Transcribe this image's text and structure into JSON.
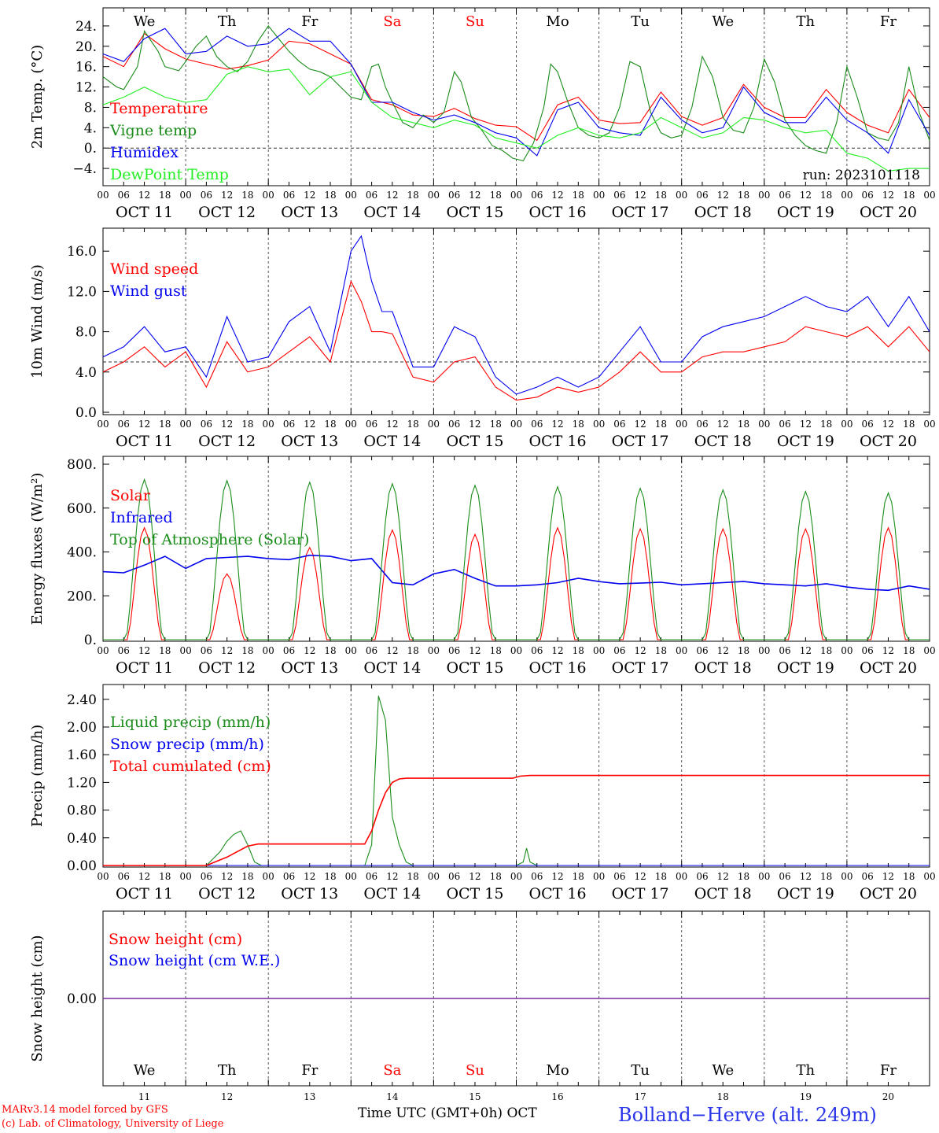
{
  "chart_data": [
    {
      "type": "line",
      "ylabel": "2m Temp. (°C)",
      "ylim": [
        -6,
        26
      ],
      "yticks": [
        {
          "v": 24,
          "label": "24."
        },
        {
          "v": 20,
          "label": "20."
        },
        {
          "v": 16,
          "label": "16."
        },
        {
          "v": 12,
          "label": "12."
        },
        {
          "v": 8,
          "label": "8."
        },
        {
          "v": 4,
          "label": "4."
        },
        {
          "v": 0,
          "label": "0."
        },
        {
          "v": -4,
          "label": "-4."
        }
      ],
      "ref_line": 0,
      "annotation": "run: 2023101118",
      "series": [
        {
          "name": "Temperature",
          "color": "#ff0000",
          "x": [
            0,
            6,
            12,
            18,
            24,
            30,
            36,
            42,
            48,
            54,
            60,
            66,
            72,
            78,
            84,
            90,
            96,
            102,
            108,
            114,
            120,
            126,
            132,
            138,
            144,
            150,
            156,
            162,
            168,
            174,
            180,
            186,
            192,
            198,
            204,
            210,
            216,
            222,
            228,
            234,
            240
          ],
          "y": [
            18,
            16,
            22.5,
            19.5,
            17.5,
            16.5,
            15.5,
            16.2,
            17.3,
            21,
            20.5,
            18.5,
            16.5,
            9.5,
            8.5,
            6.5,
            6.2,
            7.8,
            5.8,
            4.5,
            4.2,
            1.5,
            8.5,
            10,
            5.5,
            4.8,
            5,
            11,
            6.2,
            4.5,
            6,
            12.5,
            8,
            6,
            6,
            11.5,
            7,
            4.5,
            3,
            11.5,
            6
          ]
        },
        {
          "name": "Vigne temp",
          "color": "#1a8c1a",
          "x": [
            0,
            4,
            6,
            10,
            12,
            16,
            18,
            22,
            24,
            27,
            30,
            33,
            36,
            39,
            42,
            45,
            48,
            51,
            54,
            57,
            60,
            63,
            66,
            69,
            72,
            75,
            78,
            80,
            82,
            84,
            87,
            90,
            93,
            96,
            99,
            102,
            104,
            107,
            110,
            113,
            116,
            119,
            122,
            125,
            128,
            130,
            132,
            135,
            138,
            141,
            144,
            147,
            150,
            153,
            156,
            159,
            162,
            165,
            168,
            171,
            174,
            177,
            180,
            183,
            186,
            189,
            192,
            195,
            198,
            201,
            204,
            207,
            210,
            213,
            216,
            219,
            222,
            225,
            228,
            231,
            234,
            237,
            240
          ],
          "y": [
            14,
            12,
            11.5,
            16,
            23,
            19,
            16,
            15.2,
            17,
            20,
            22,
            18,
            16,
            15,
            17,
            21,
            24,
            21.5,
            19,
            17,
            15.5,
            15,
            14,
            12,
            10,
            9.5,
            16,
            16.5,
            12,
            9,
            5,
            4,
            6.5,
            5,
            7,
            15,
            13,
            6,
            3.5,
            0.5,
            -0.5,
            -2,
            -2.5,
            1,
            8,
            16.5,
            15,
            9,
            4,
            2.5,
            2,
            3,
            8,
            17,
            16,
            7,
            3,
            2,
            2.5,
            8,
            18,
            14,
            6,
            3.5,
            3,
            8,
            17.5,
            13,
            5.5,
            2.5,
            0.5,
            -0.5,
            -1,
            5,
            16,
            10,
            3,
            2,
            1.5,
            5,
            16,
            7,
            1.5
          ]
        },
        {
          "name": "Humidex",
          "color": "#0000ee",
          "x": [
            0,
            6,
            12,
            18,
            24,
            30,
            36,
            42,
            48,
            54,
            60,
            66,
            72,
            78,
            84,
            90,
            96,
            102,
            108,
            114,
            120,
            126,
            132,
            138,
            144,
            150,
            156,
            162,
            168,
            174,
            180,
            186,
            192,
            198,
            204,
            210,
            216,
            222,
            228,
            234,
            240
          ],
          "y": [
            18.5,
            17,
            21.5,
            23.5,
            18.5,
            19,
            22,
            20,
            20.5,
            23.5,
            21,
            21,
            16.5,
            9,
            9,
            7,
            5.5,
            6.5,
            5,
            3,
            2,
            -1.5,
            7.5,
            9,
            4,
            3,
            2.5,
            10,
            5.5,
            3,
            4,
            12,
            7,
            5,
            5,
            10,
            5.5,
            3,
            -1,
            9.5,
            2.5
          ]
        },
        {
          "name": "DewPoint Temp",
          "color": "#22ee22",
          "x": [
            0,
            6,
            12,
            18,
            24,
            30,
            36,
            42,
            48,
            54,
            60,
            66,
            72,
            78,
            84,
            90,
            96,
            102,
            108,
            114,
            120,
            126,
            132,
            138,
            144,
            150,
            156,
            162,
            168,
            174,
            180,
            186,
            192,
            198,
            204,
            210,
            216,
            222,
            228,
            234,
            240
          ],
          "y": [
            8.5,
            10,
            12,
            10,
            9,
            9.5,
            14.5,
            16,
            15,
            15.5,
            10.5,
            14,
            15,
            9,
            6,
            5,
            4,
            5.5,
            4.5,
            2,
            1,
            0,
            2.5,
            4,
            2.5,
            2,
            3,
            6,
            4,
            2,
            3,
            6,
            5.5,
            4,
            3,
            3.5,
            -1,
            -2,
            -4.5,
            -4,
            -4
          ]
        }
      ]
    },
    {
      "type": "line",
      "ylabel": "10m Wind (m/s)",
      "ylim": [
        0,
        17.5
      ],
      "yticks": [
        {
          "v": 16,
          "label": "16.0"
        },
        {
          "v": 12,
          "label": "12.0"
        },
        {
          "v": 8,
          "label": "8.0"
        },
        {
          "v": 4,
          "label": "4.0"
        },
        {
          "v": 0,
          "label": "0.0"
        }
      ],
      "ref_line": 5,
      "series": [
        {
          "name": "Wind speed",
          "color": "#ff0000",
          "x": [
            0,
            6,
            12,
            18,
            24,
            30,
            36,
            42,
            48,
            54,
            60,
            66,
            72,
            75,
            78,
            81,
            84,
            90,
            96,
            102,
            108,
            114,
            120,
            126,
            132,
            138,
            144,
            150,
            156,
            162,
            168,
            174,
            180,
            186,
            192,
            198,
            204,
            210,
            216,
            222,
            228,
            234,
            240
          ],
          "y": [
            4,
            5,
            6.5,
            4.5,
            6,
            2.5,
            7,
            4,
            4.5,
            6,
            7.5,
            5,
            13,
            11,
            8,
            8,
            7.8,
            3.5,
            3,
            5,
            5.5,
            2.5,
            1.2,
            1.5,
            2.5,
            2,
            2.5,
            4,
            6,
            4,
            4,
            5.5,
            6,
            6,
            6.5,
            7,
            8.5,
            8,
            7.5,
            8.5,
            6.5,
            8.5,
            6
          ]
        },
        {
          "name": "Wind gust",
          "color": "#0000ee",
          "x": [
            0,
            6,
            12,
            18,
            24,
            30,
            36,
            42,
            48,
            54,
            60,
            66,
            72,
            75,
            78,
            81,
            84,
            90,
            96,
            102,
            108,
            114,
            120,
            126,
            132,
            138,
            144,
            150,
            156,
            162,
            168,
            174,
            180,
            186,
            192,
            198,
            204,
            210,
            216,
            222,
            228,
            234,
            240
          ],
          "y": [
            5.5,
            6.5,
            8.5,
            6,
            6.5,
            3.5,
            9.5,
            5,
            5.5,
            9,
            10.5,
            6,
            16,
            17.5,
            13,
            10,
            10,
            4.5,
            4.5,
            8.5,
            7.5,
            3.5,
            1.8,
            2.5,
            3.5,
            2.5,
            3.5,
            6,
            8.5,
            5,
            5,
            7.5,
            8.5,
            9,
            9.5,
            10.5,
            11.5,
            10.5,
            10,
            11.5,
            8.5,
            11.5,
            8
          ]
        }
      ]
    },
    {
      "type": "line",
      "ylabel": "Energy fluxes (W/m²)",
      "ylim": [
        0,
        800
      ],
      "yticks": [
        {
          "v": 800,
          "label": "800."
        },
        {
          "v": 600,
          "label": "600."
        },
        {
          "v": 400,
          "label": "400."
        },
        {
          "v": 200,
          "label": "200."
        },
        {
          "v": 0,
          "label": "0."
        }
      ],
      "series": [
        {
          "name": "Solar",
          "color": "#ff0000",
          "peaks": [
            510,
            300,
            420,
            500,
            480,
            510,
            505,
            505,
            505,
            510
          ]
        },
        {
          "name": "Infrared",
          "color": "#0000ee",
          "x": [
            0,
            6,
            12,
            18,
            24,
            30,
            36,
            42,
            48,
            54,
            60,
            66,
            72,
            78,
            84,
            90,
            96,
            102,
            108,
            114,
            120,
            126,
            132,
            138,
            144,
            150,
            156,
            162,
            168,
            174,
            180,
            186,
            192,
            198,
            204,
            210,
            216,
            222,
            228,
            234,
            240
          ],
          "y": [
            310,
            305,
            340,
            380,
            325,
            370,
            375,
            380,
            370,
            365,
            385,
            380,
            360,
            370,
            260,
            250,
            300,
            320,
            280,
            245,
            245,
            250,
            260,
            280,
            265,
            255,
            258,
            262,
            250,
            255,
            260,
            265,
            255,
            250,
            245,
            255,
            240,
            230,
            225,
            245,
            230
          ]
        },
        {
          "name": "Top of Atmosphere (Solar)",
          "color": "#1a8c1a",
          "peaks": [
            730,
            725,
            718,
            711,
            704,
            697,
            690,
            683,
            676,
            669
          ]
        }
      ]
    },
    {
      "type": "line",
      "ylabel": "Precip (mm/h)",
      "ylim": [
        0,
        2.5
      ],
      "yticks": [
        {
          "v": 2.4,
          "label": "2.40"
        },
        {
          "v": 2.0,
          "label": "2.00"
        },
        {
          "v": 1.6,
          "label": "1.60"
        },
        {
          "v": 1.2,
          "label": "1.20"
        },
        {
          "v": 0.8,
          "label": "0.80"
        },
        {
          "v": 0.4,
          "label": "0.40"
        },
        {
          "v": 0,
          "label": "0.00"
        }
      ],
      "series": [
        {
          "name": "Liquid precip (mm/h)",
          "color": "#1a8c1a",
          "x": [
            0,
            30,
            32,
            34,
            36,
            38,
            40,
            42,
            44,
            46,
            48,
            76,
            78,
            80,
            82,
            84,
            86,
            88,
            90,
            92,
            120,
            122,
            123,
            124,
            126,
            240
          ],
          "y": [
            0,
            0,
            0.1,
            0.2,
            0.35,
            0.45,
            0.5,
            0.3,
            0.05,
            0,
            0,
            0,
            0.3,
            2.45,
            2.1,
            0.7,
            0.3,
            0.05,
            0,
            0,
            0,
            0.05,
            0.25,
            0.05,
            0,
            0
          ]
        },
        {
          "name": "Snow precip (mm/h)",
          "color": "#0000ee",
          "x": [
            0,
            240
          ],
          "y": [
            0,
            0
          ]
        },
        {
          "name": "Total cumulated (cm)",
          "color": "#ff0000",
          "x": [
            0,
            30,
            36,
            42,
            45,
            48,
            76,
            78,
            80,
            82,
            84,
            86,
            88,
            90,
            96,
            119,
            121,
            124,
            240
          ],
          "y": [
            0,
            0,
            0.12,
            0.28,
            0.31,
            0.31,
            0.31,
            0.5,
            0.8,
            1.05,
            1.2,
            1.25,
            1.26,
            1.26,
            1.26,
            1.26,
            1.29,
            1.3,
            1.3
          ]
        }
      ]
    },
    {
      "type": "line",
      "ylabel": "Snow height (cm)",
      "ylim": [
        -1,
        1
      ],
      "yticks": [
        {
          "v": 0,
          "label": "0.00"
        }
      ],
      "series": [
        {
          "name": "Snow height (cm)",
          "color": "#ff0000",
          "x": [
            0,
            240
          ],
          "y": [
            0,
            0
          ]
        },
        {
          "name": "Snow height (cm W.E.)",
          "color": "#0000ee",
          "x": [
            0,
            240
          ],
          "y": [
            0,
            0
          ]
        }
      ]
    }
  ],
  "x_axis": {
    "hour_ticks": [
      "00",
      "06",
      "12",
      "18"
    ],
    "end_tick": "00",
    "dates": [
      "OCT 11",
      "OCT 12",
      "OCT 13",
      "OCT 14",
      "OCT 15",
      "OCT 16",
      "OCT 17",
      "OCT 18",
      "OCT 19",
      "OCT 20"
    ],
    "weekdays": [
      "We",
      "Th",
      "Fr",
      "Sa",
      "Su",
      "Mo",
      "Tu",
      "We",
      "Th",
      "Fr"
    ],
    "weekend_color": "#ff0000",
    "weekday_color": "#000000",
    "day_numbers": [
      "11",
      "12",
      "13",
      "14",
      "15",
      "16",
      "17",
      "18",
      "19",
      "20"
    ],
    "time_label": "Time UTC (GMT+0h) OCT"
  },
  "footer": {
    "credit_line1": "MARv3.14 model forced by GFS",
    "credit_line2": "(c) Lab. of Climatology, University of Liege",
    "location": "Bolland−Herve (alt. 249m)"
  }
}
